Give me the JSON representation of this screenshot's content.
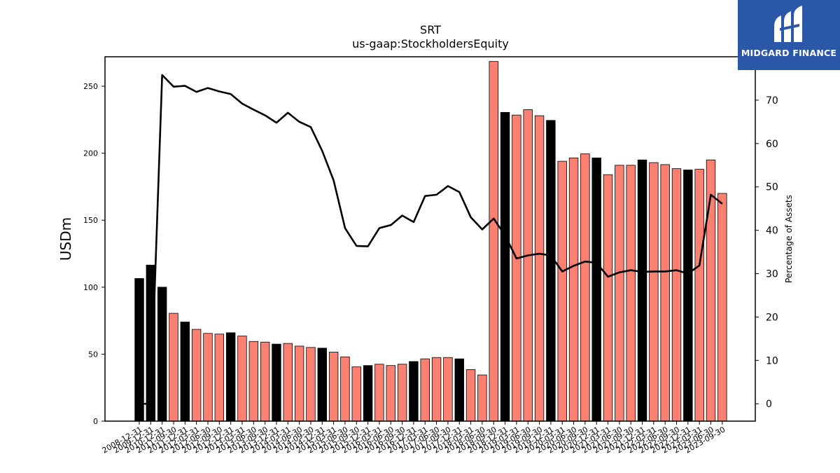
{
  "chart_data": {
    "type": "bar",
    "title": "SRT",
    "subtitle": "us-gaap:StockholdersEquity",
    "ylabel": "USDm",
    "y2label": "Percentage of Assets",
    "ylim": [
      0,
      272
    ],
    "y2lim": [
      -4,
      80
    ],
    "yticks": [
      0,
      50,
      100,
      150,
      200,
      250
    ],
    "y2ticks": [
      0,
      10,
      20,
      30,
      40,
      50,
      60,
      70
    ],
    "colors": {
      "annual": "#000000",
      "quarter": "#fa8072",
      "edge": "#000000",
      "line": "#000000"
    },
    "x_tick_labels": [
      "2008-12-31",
      "2009-12-31",
      "2010-12-31",
      "2011-09-30",
      "2011-12-31",
      "2012-03-31",
      "2012-06-30",
      "2012-09-30",
      "2012-12-31",
      "2013-03-31",
      "2013-06-30",
      "2013-09-30",
      "2013-12-31",
      "2014-03-31",
      "2014-06-30",
      "2014-09-30",
      "2014-12-31",
      "2015-03-31",
      "2015-06-30",
      "2015-09-30",
      "2015-12-31",
      "2016-03-31",
      "2016-06-30",
      "2016-09-30",
      "2016-12-31",
      "2017-03-31",
      "2017-06-30",
      "2017-09-30",
      "2017-12-31",
      "2018-03-31",
      "2018-06-30",
      "2018-09-30",
      "2018-12-31",
      "2019-03-31",
      "2019-06-30",
      "2019-09-30",
      "2019-12-31",
      "2020-03-31",
      "2020-06-30",
      "2020-09-30",
      "2020-12-31",
      "2021-03-31",
      "2021-06-30",
      "2021-09-30",
      "2021-12-31",
      "2022-03-31",
      "2022-06-30",
      "2022-09-30",
      "2022-12-31",
      "2023-03-31",
      "2023-06-30",
      "2023-09-30"
    ],
    "categories": [
      "2008-12-31",
      "2009-12-31",
      "2010-12-31",
      "2011-09-30",
      "2011-12-31",
      "2012-03-31",
      "2012-06-30",
      "2012-09-30",
      "2012-12-31",
      "2013-03-31",
      "2013-06-30",
      "2013-09-30",
      "2013-12-31",
      "2014-03-31",
      "2014-06-30",
      "2014-09-30",
      "2014-12-31",
      "2015-03-31",
      "2015-06-30",
      "2015-09-30",
      "2015-12-31",
      "2016-03-31",
      "2016-06-30",
      "2016-09-30",
      "2016-12-31",
      "2017-03-31",
      "2017-06-30",
      "2017-09-30",
      "2017-12-31",
      "2018-03-31",
      "2018-06-30",
      "2018-09-30",
      "2018-12-31",
      "2019-03-31",
      "2019-06-30",
      "2019-09-30",
      "2019-12-31",
      "2020-03-31",
      "2020-06-30",
      "2020-09-30",
      "2020-12-31",
      "2021-03-31",
      "2021-06-30",
      "2021-09-30",
      "2021-12-31",
      "2022-03-31",
      "2022-06-30",
      "2022-09-30",
      "2022-12-31",
      "2023-03-31",
      "2023-06-30",
      "2023-09-30"
    ],
    "bars": [
      {
        "value": 106.5,
        "annual": true
      },
      {
        "value": 116.5,
        "annual": true
      },
      {
        "value": 100,
        "annual": true
      },
      {
        "value": 80.5,
        "annual": false
      },
      {
        "value": 74,
        "annual": true
      },
      {
        "value": 68.5,
        "annual": false
      },
      {
        "value": 65.5,
        "annual": false
      },
      {
        "value": 65,
        "annual": false
      },
      {
        "value": 66,
        "annual": true
      },
      {
        "value": 63.5,
        "annual": false
      },
      {
        "value": 59.5,
        "annual": false
      },
      {
        "value": 59,
        "annual": false
      },
      {
        "value": 57.5,
        "annual": true
      },
      {
        "value": 58,
        "annual": false
      },
      {
        "value": 56,
        "annual": false
      },
      {
        "value": 55,
        "annual": false
      },
      {
        "value": 54.5,
        "annual": true
      },
      {
        "value": 51.5,
        "annual": false
      },
      {
        "value": 48,
        "annual": false
      },
      {
        "value": 40.5,
        "annual": false
      },
      {
        "value": 41.5,
        "annual": true
      },
      {
        "value": 42.5,
        "annual": false
      },
      {
        "value": 41.5,
        "annual": false
      },
      {
        "value": 42.5,
        "annual": false
      },
      {
        "value": 44.5,
        "annual": true
      },
      {
        "value": 46.5,
        "annual": false
      },
      {
        "value": 47.5,
        "annual": false
      },
      {
        "value": 47.5,
        "annual": false
      },
      {
        "value": 46.5,
        "annual": true
      },
      {
        "value": 38.5,
        "annual": false
      },
      {
        "value": 34.5,
        "annual": false
      },
      {
        "value": 268.5,
        "annual": false
      },
      {
        "value": 230.5,
        "annual": true
      },
      {
        "value": 228.5,
        "annual": false
      },
      {
        "value": 232.5,
        "annual": false
      },
      {
        "value": 228,
        "annual": false
      },
      {
        "value": 224.5,
        "annual": true
      },
      {
        "value": 194,
        "annual": false
      },
      {
        "value": 196.5,
        "annual": false
      },
      {
        "value": 199.5,
        "annual": false
      },
      {
        "value": 196.5,
        "annual": true
      },
      {
        "value": 184,
        "annual": false
      },
      {
        "value": 191,
        "annual": false
      },
      {
        "value": 191,
        "annual": false
      },
      {
        "value": 195,
        "annual": true
      },
      {
        "value": 193,
        "annual": false
      },
      {
        "value": 191.5,
        "annual": false
      },
      {
        "value": 188.5,
        "annual": false
      },
      {
        "value": 187.5,
        "annual": true
      },
      {
        "value": 188,
        "annual": false
      },
      {
        "value": 195,
        "annual": false
      },
      {
        "value": 170,
        "annual": false
      }
    ],
    "line_values": [
      0,
      0,
      75.8,
      73.1,
      73.3,
      71.9,
      72.8,
      72,
      71.4,
      69.2,
      67.8,
      66.5,
      64.8,
      67.1,
      65,
      63.8,
      58.3,
      51.5,
      40.5,
      36.4,
      36.3,
      40.5,
      41.2,
      43.4,
      41.9,
      47.9,
      48.2,
      50.2,
      48.8,
      43,
      40.2,
      42.7,
      38.8,
      33.5,
      34.2,
      34.6,
      34.2,
      30.5,
      31.8,
      32.8,
      32.5,
      29.3,
      30.3,
      30.8,
      30.4,
      30.5,
      30.5,
      30.8,
      30,
      31.9,
      48.2,
      46.1
    ]
  },
  "logo": {
    "text": "MIDGARD FINANCE"
  }
}
